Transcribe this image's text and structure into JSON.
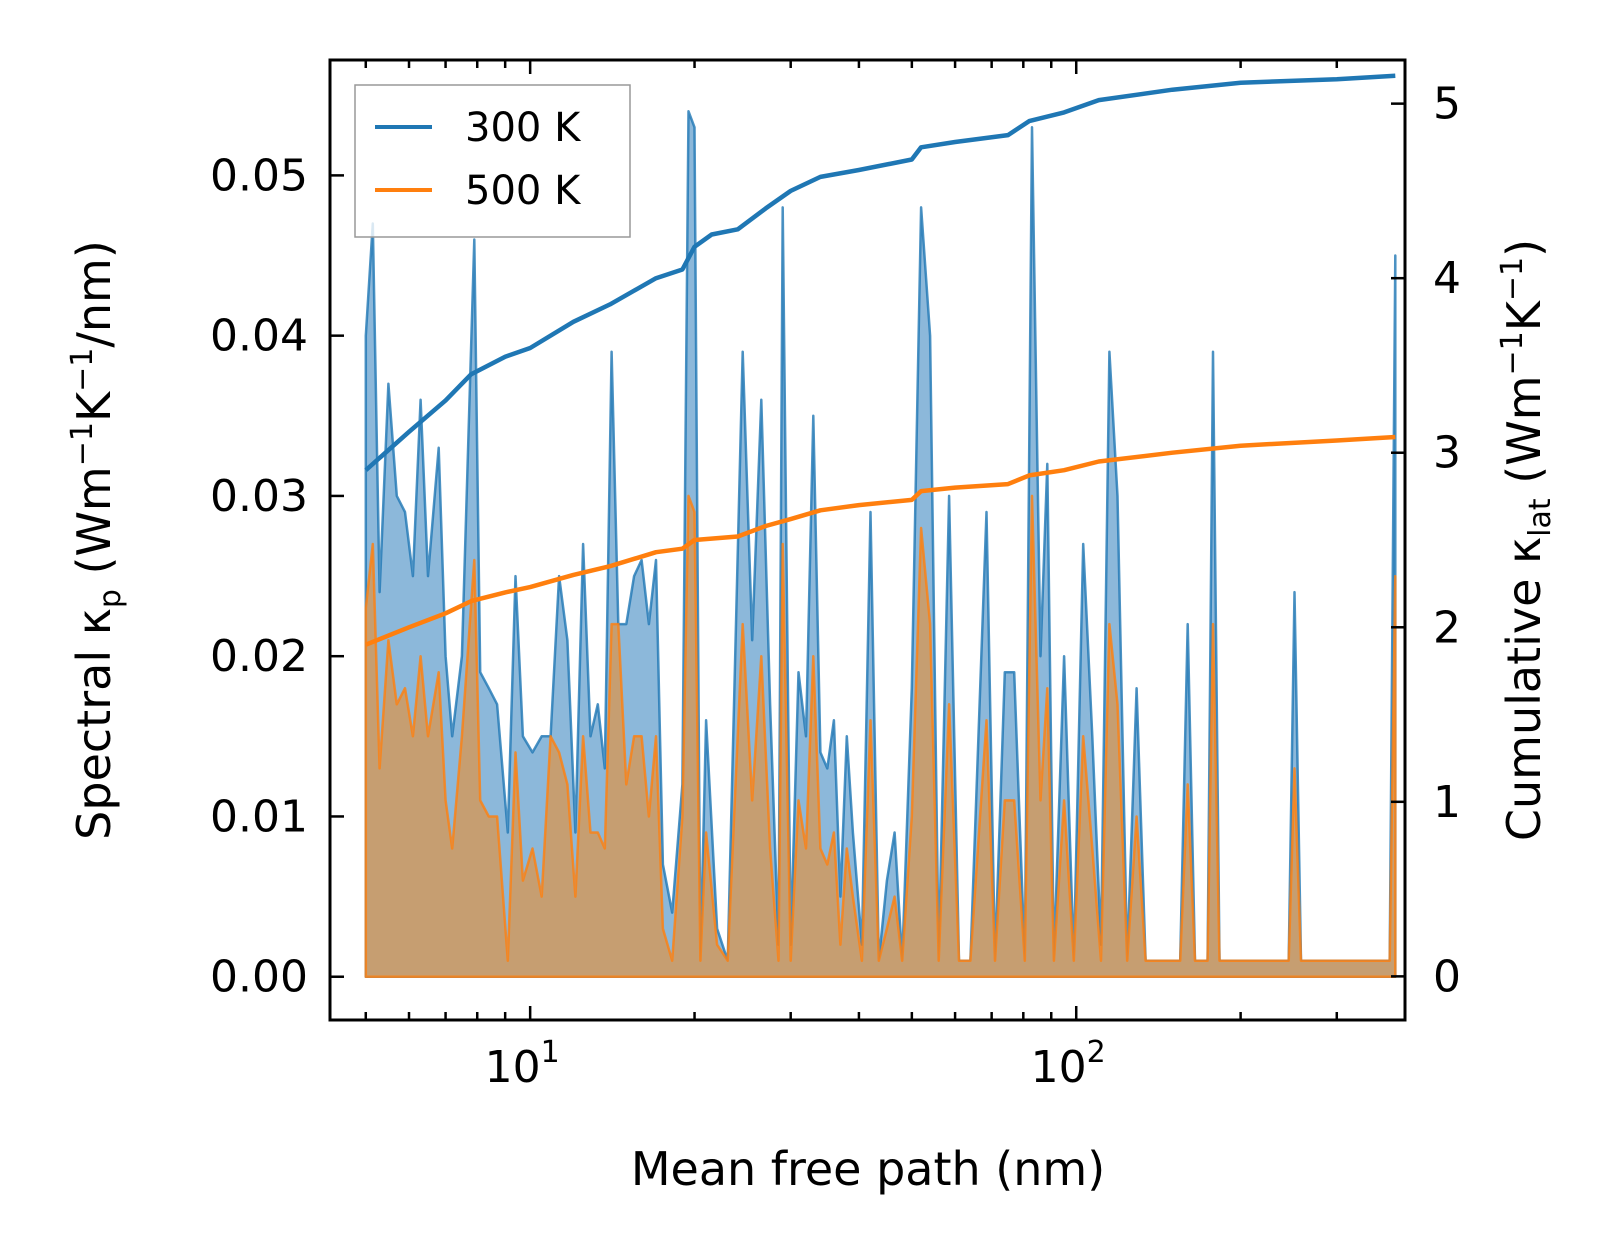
{
  "chart_data": {
    "type": "area",
    "xscale": "log",
    "xlabel": "Mean free path (nm)",
    "ylabel_left": {
      "main": "Spectral κ",
      "sub": "p",
      "units_a": " (Wm",
      "sup_a": "−1",
      "units_b": "K",
      "sup_b": "−1",
      "units_c": "/nm)"
    },
    "ylabel_right": {
      "main": "Cumulative κ",
      "sub": "lat",
      "units_a": " (Wm",
      "sup_a": "−1",
      "units_b": "K",
      "sup_b": "−1",
      "units_c": ")"
    },
    "xlim": [
      4.3,
      400
    ],
    "ylim_left": [
      -0.0027,
      0.0572
    ],
    "ylim_right": [
      -0.25,
      5.25
    ],
    "xticks": [
      {
        "value": 10,
        "base": "10",
        "exp": "1"
      },
      {
        "value": 100,
        "base": "10",
        "exp": "2"
      }
    ],
    "yticks_left": [
      "0.00",
      "0.01",
      "0.02",
      "0.03",
      "0.04",
      "0.05"
    ],
    "yticks_left_values": [
      0,
      0.01,
      0.02,
      0.03,
      0.04,
      0.05
    ],
    "yticks_right": [
      "0",
      "1",
      "2",
      "3",
      "4",
      "5"
    ],
    "yticks_right_values": [
      0,
      1,
      2,
      3,
      4,
      5
    ],
    "legend": {
      "location": "upper-left",
      "entries": [
        "300 K",
        "500 K"
      ]
    },
    "colors": {
      "s300": "#1f77b4",
      "s500": "#ff7f0e",
      "fill300": "#7fb0d6",
      "fill500": "#c99c6c"
    },
    "spectral": [
      {
        "name": "300 K",
        "points": [
          [
            5,
            0.04
          ],
          [
            5.15,
            0.047
          ],
          [
            5.3,
            0.024
          ],
          [
            5.5,
            0.037
          ],
          [
            5.7,
            0.03
          ],
          [
            5.9,
            0.029
          ],
          [
            6.1,
            0.025
          ],
          [
            6.3,
            0.036
          ],
          [
            6.5,
            0.025
          ],
          [
            6.8,
            0.033
          ],
          [
            7.0,
            0.02
          ],
          [
            7.2,
            0.015
          ],
          [
            7.5,
            0.02
          ],
          [
            7.9,
            0.046
          ],
          [
            8.1,
            0.019
          ],
          [
            8.4,
            0.018
          ],
          [
            8.7,
            0.017
          ],
          [
            9.1,
            0.009
          ],
          [
            9.4,
            0.025
          ],
          [
            9.7,
            0.015
          ],
          [
            10.1,
            0.014
          ],
          [
            10.5,
            0.015
          ],
          [
            10.9,
            0.015
          ],
          [
            11.3,
            0.025
          ],
          [
            11.7,
            0.021
          ],
          [
            12.1,
            0.009
          ],
          [
            12.5,
            0.027
          ],
          [
            12.9,
            0.015
          ],
          [
            13.3,
            0.017
          ],
          [
            13.7,
            0.013
          ],
          [
            14.1,
            0.039
          ],
          [
            14.5,
            0.022
          ],
          [
            15.0,
            0.022
          ],
          [
            15.5,
            0.025
          ],
          [
            16.0,
            0.026
          ],
          [
            16.5,
            0.022
          ],
          [
            17.0,
            0.026
          ],
          [
            17.5,
            0.007
          ],
          [
            18.2,
            0.004
          ],
          [
            19.0,
            0.012
          ],
          [
            19.5,
            0.054
          ],
          [
            20.0,
            0.053
          ],
          [
            20.5,
            0.001
          ],
          [
            21.0,
            0.016
          ],
          [
            22.0,
            0.003
          ],
          [
            23.0,
            0.001
          ],
          [
            24.5,
            0.039
          ],
          [
            25.5,
            0.021
          ],
          [
            26.5,
            0.036
          ],
          [
            27.5,
            0.017
          ],
          [
            28.5,
            0.002
          ],
          [
            29.0,
            0.048
          ],
          [
            30.0,
            0.002
          ],
          [
            31.0,
            0.019
          ],
          [
            32.0,
            0.015
          ],
          [
            33.0,
            0.035
          ],
          [
            34.0,
            0.014
          ],
          [
            35.0,
            0.013
          ],
          [
            36.0,
            0.016
          ],
          [
            37.0,
            0.005
          ],
          [
            38.0,
            0.015
          ],
          [
            39.0,
            0.009
          ],
          [
            40.5,
            0.002
          ],
          [
            42.0,
            0.029
          ],
          [
            43.5,
            0.001
          ],
          [
            45.0,
            0.006
          ],
          [
            46.5,
            0.009
          ],
          [
            48.0,
            0.001
          ],
          [
            50.0,
            0.018
          ],
          [
            52.0,
            0.048
          ],
          [
            54.0,
            0.04
          ],
          [
            56.0,
            0.001
          ],
          [
            58.5,
            0.03
          ],
          [
            61.0,
            0.001
          ],
          [
            64.0,
            0.001
          ],
          [
            68.5,
            0.029
          ],
          [
            71.0,
            0.001
          ],
          [
            74.0,
            0.019
          ],
          [
            77.0,
            0.019
          ],
          [
            80.5,
            0.001
          ],
          [
            83.0,
            0.053
          ],
          [
            86.0,
            0.02
          ],
          [
            88.5,
            0.032
          ],
          [
            91.0,
            0.001
          ],
          [
            95.0,
            0.02
          ],
          [
            99.0,
            0.001
          ],
          [
            103.0,
            0.027
          ],
          [
            107.0,
            0.015
          ],
          [
            111.0,
            0.002
          ],
          [
            115.0,
            0.039
          ],
          [
            119.0,
            0.03
          ],
          [
            124.0,
            0.001
          ],
          [
            129.0,
            0.018
          ],
          [
            134.0,
            0.001
          ],
          [
            155.0,
            0.001
          ],
          [
            160.0,
            0.022
          ],
          [
            165.0,
            0.001
          ],
          [
            174.0,
            0.001
          ],
          [
            178.0,
            0.039
          ],
          [
            183.0,
            0.001
          ],
          [
            245.0,
            0.001
          ],
          [
            251.0,
            0.024
          ],
          [
            258.0,
            0.001
          ],
          [
            375.0,
            0.001
          ],
          [
            384.0,
            0.045
          ]
        ]
      },
      {
        "name": "500 K",
        "points": [
          [
            5,
            0.023
          ],
          [
            5.15,
            0.027
          ],
          [
            5.3,
            0.013
          ],
          [
            5.5,
            0.021
          ],
          [
            5.7,
            0.017
          ],
          [
            5.9,
            0.018
          ],
          [
            6.1,
            0.015
          ],
          [
            6.3,
            0.02
          ],
          [
            6.5,
            0.015
          ],
          [
            6.8,
            0.019
          ],
          [
            7.0,
            0.011
          ],
          [
            7.2,
            0.008
          ],
          [
            7.5,
            0.015
          ],
          [
            7.9,
            0.026
          ],
          [
            8.1,
            0.011
          ],
          [
            8.4,
            0.01
          ],
          [
            8.7,
            0.01
          ],
          [
            9.1,
            0.001
          ],
          [
            9.4,
            0.014
          ],
          [
            9.7,
            0.006
          ],
          [
            10.1,
            0.008
          ],
          [
            10.5,
            0.005
          ],
          [
            10.9,
            0.015
          ],
          [
            11.3,
            0.014
          ],
          [
            11.7,
            0.012
          ],
          [
            12.1,
            0.005
          ],
          [
            12.5,
            0.015
          ],
          [
            12.9,
            0.009
          ],
          [
            13.3,
            0.009
          ],
          [
            13.7,
            0.008
          ],
          [
            14.1,
            0.022
          ],
          [
            14.5,
            0.022
          ],
          [
            15.0,
            0.012
          ],
          [
            15.5,
            0.015
          ],
          [
            16.0,
            0.015
          ],
          [
            16.5,
            0.01
          ],
          [
            17.0,
            0.015
          ],
          [
            17.5,
            0.003
          ],
          [
            18.2,
            0.001
          ],
          [
            19.0,
            0.01
          ],
          [
            19.5,
            0.03
          ],
          [
            20.0,
            0.029
          ],
          [
            20.5,
            0.001
          ],
          [
            21.0,
            0.009
          ],
          [
            22.0,
            0.002
          ],
          [
            23.0,
            0.001
          ],
          [
            24.5,
            0.022
          ],
          [
            25.5,
            0.011
          ],
          [
            26.5,
            0.02
          ],
          [
            27.5,
            0.008
          ],
          [
            28.5,
            0.001
          ],
          [
            29.0,
            0.027
          ],
          [
            30.0,
            0.001
          ],
          [
            31.0,
            0.011
          ],
          [
            32.0,
            0.008
          ],
          [
            33.0,
            0.02
          ],
          [
            34.0,
            0.008
          ],
          [
            35.0,
            0.007
          ],
          [
            36.0,
            0.009
          ],
          [
            37.0,
            0.002
          ],
          [
            38.0,
            0.008
          ],
          [
            39.0,
            0.005
          ],
          [
            40.5,
            0.001
          ],
          [
            42.0,
            0.016
          ],
          [
            43.5,
            0.001
          ],
          [
            45.0,
            0.003
          ],
          [
            46.5,
            0.005
          ],
          [
            48.0,
            0.001
          ],
          [
            50.0,
            0.01
          ],
          [
            52.0,
            0.028
          ],
          [
            54.0,
            0.022
          ],
          [
            56.0,
            0.001
          ],
          [
            58.5,
            0.017
          ],
          [
            61.0,
            0.001
          ],
          [
            64.0,
            0.001
          ],
          [
            68.5,
            0.016
          ],
          [
            71.0,
            0.001
          ],
          [
            74.0,
            0.011
          ],
          [
            77.0,
            0.011
          ],
          [
            80.5,
            0.001
          ],
          [
            83.0,
            0.03
          ],
          [
            86.0,
            0.011
          ],
          [
            88.5,
            0.018
          ],
          [
            91.0,
            0.001
          ],
          [
            95.0,
            0.011
          ],
          [
            99.0,
            0.001
          ],
          [
            103.0,
            0.015
          ],
          [
            107.0,
            0.008
          ],
          [
            111.0,
            0.001
          ],
          [
            115.0,
            0.022
          ],
          [
            119.0,
            0.017
          ],
          [
            124.0,
            0.001
          ],
          [
            129.0,
            0.01
          ],
          [
            134.0,
            0.001
          ],
          [
            155.0,
            0.001
          ],
          [
            160.0,
            0.012
          ],
          [
            165.0,
            0.001
          ],
          [
            174.0,
            0.001
          ],
          [
            178.0,
            0.022
          ],
          [
            183.0,
            0.001
          ],
          [
            245.0,
            0.001
          ],
          [
            251.0,
            0.013
          ],
          [
            258.0,
            0.001
          ],
          [
            375.0,
            0.001
          ],
          [
            384.0,
            0.025
          ]
        ]
      }
    ],
    "cumulative": [
      {
        "name": "300 K",
        "points": [
          [
            5,
            2.9
          ],
          [
            6,
            3.12
          ],
          [
            7,
            3.3
          ],
          [
            7.8,
            3.45
          ],
          [
            9,
            3.55
          ],
          [
            10,
            3.6
          ],
          [
            12,
            3.75
          ],
          [
            14,
            3.85
          ],
          [
            17,
            4.0
          ],
          [
            19,
            4.05
          ],
          [
            20,
            4.18
          ],
          [
            21.5,
            4.25
          ],
          [
            24,
            4.28
          ],
          [
            27,
            4.4
          ],
          [
            30,
            4.5
          ],
          [
            34,
            4.58
          ],
          [
            40,
            4.62
          ],
          [
            50,
            4.68
          ],
          [
            52,
            4.75
          ],
          [
            60,
            4.78
          ],
          [
            75,
            4.82
          ],
          [
            82,
            4.9
          ],
          [
            95,
            4.95
          ],
          [
            110,
            5.02
          ],
          [
            150,
            5.08
          ],
          [
            200,
            5.12
          ],
          [
            300,
            5.14
          ],
          [
            384,
            5.16
          ]
        ]
      },
      {
        "name": "500 K",
        "points": [
          [
            5,
            1.9
          ],
          [
            6,
            2.0
          ],
          [
            7,
            2.08
          ],
          [
            7.8,
            2.15
          ],
          [
            9,
            2.2
          ],
          [
            10,
            2.23
          ],
          [
            12,
            2.3
          ],
          [
            14,
            2.35
          ],
          [
            17,
            2.43
          ],
          [
            19,
            2.45
          ],
          [
            20,
            2.5
          ],
          [
            24,
            2.52
          ],
          [
            27,
            2.58
          ],
          [
            30,
            2.62
          ],
          [
            34,
            2.67
          ],
          [
            40,
            2.7
          ],
          [
            50,
            2.73
          ],
          [
            52,
            2.78
          ],
          [
            60,
            2.8
          ],
          [
            75,
            2.82
          ],
          [
            82,
            2.87
          ],
          [
            95,
            2.9
          ],
          [
            110,
            2.95
          ],
          [
            150,
            3.0
          ],
          [
            200,
            3.04
          ],
          [
            300,
            3.07
          ],
          [
            384,
            3.09
          ]
        ]
      }
    ]
  }
}
